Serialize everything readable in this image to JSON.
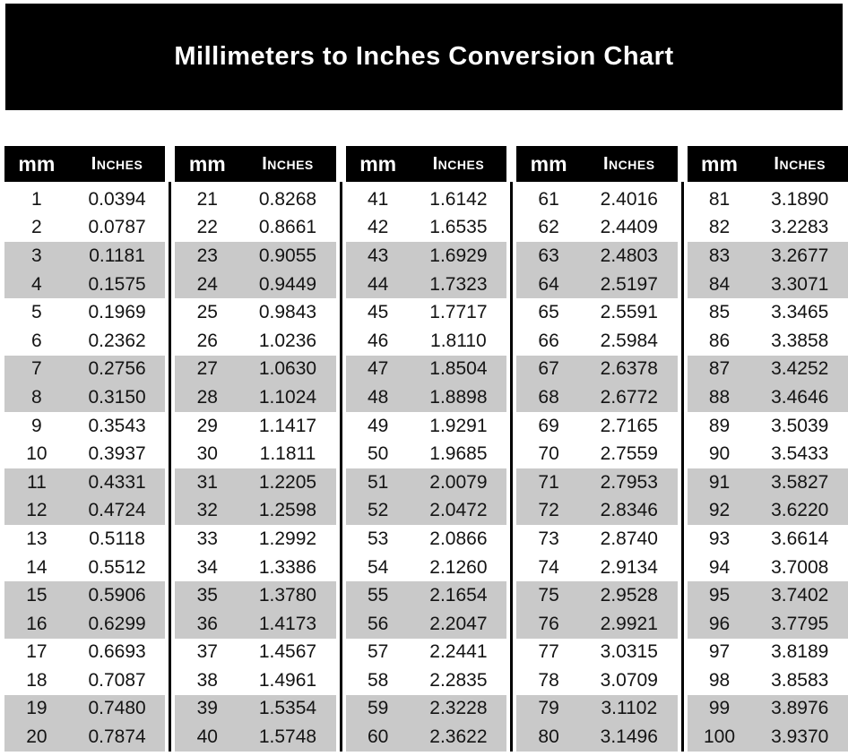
{
  "title": "Millimeters to Inches Conversion Chart",
  "table": {
    "col_headers": {
      "mm": "mm",
      "inches": "Inches"
    },
    "groups": [
      {
        "rows": [
          {
            "mm": "1",
            "inches": "0.0394"
          },
          {
            "mm": "2",
            "inches": "0.0787"
          },
          {
            "mm": "3",
            "inches": "0.1181"
          },
          {
            "mm": "4",
            "inches": "0.1575"
          },
          {
            "mm": "5",
            "inches": "0.1969"
          },
          {
            "mm": "6",
            "inches": "0.2362"
          },
          {
            "mm": "7",
            "inches": "0.2756"
          },
          {
            "mm": "8",
            "inches": "0.3150"
          },
          {
            "mm": "9",
            "inches": "0.3543"
          },
          {
            "mm": "10",
            "inches": "0.3937"
          },
          {
            "mm": "11",
            "inches": "0.4331"
          },
          {
            "mm": "12",
            "inches": "0.4724"
          },
          {
            "mm": "13",
            "inches": "0.5118"
          },
          {
            "mm": "14",
            "inches": "0.5512"
          },
          {
            "mm": "15",
            "inches": "0.5906"
          },
          {
            "mm": "16",
            "inches": "0.6299"
          },
          {
            "mm": "17",
            "inches": "0.6693"
          },
          {
            "mm": "18",
            "inches": "0.7087"
          },
          {
            "mm": "19",
            "inches": "0.7480"
          },
          {
            "mm": "20",
            "inches": "0.7874"
          }
        ]
      },
      {
        "rows": [
          {
            "mm": "21",
            "inches": "0.8268"
          },
          {
            "mm": "22",
            "inches": "0.8661"
          },
          {
            "mm": "23",
            "inches": "0.9055"
          },
          {
            "mm": "24",
            "inches": "0.9449"
          },
          {
            "mm": "25",
            "inches": "0.9843"
          },
          {
            "mm": "26",
            "inches": "1.0236"
          },
          {
            "mm": "27",
            "inches": "1.0630"
          },
          {
            "mm": "28",
            "inches": "1.1024"
          },
          {
            "mm": "29",
            "inches": "1.1417"
          },
          {
            "mm": "30",
            "inches": "1.1811"
          },
          {
            "mm": "31",
            "inches": "1.2205"
          },
          {
            "mm": "32",
            "inches": "1.2598"
          },
          {
            "mm": "33",
            "inches": "1.2992"
          },
          {
            "mm": "34",
            "inches": "1.3386"
          },
          {
            "mm": "35",
            "inches": "1.3780"
          },
          {
            "mm": "36",
            "inches": "1.4173"
          },
          {
            "mm": "37",
            "inches": "1.4567"
          },
          {
            "mm": "38",
            "inches": "1.4961"
          },
          {
            "mm": "39",
            "inches": "1.5354"
          },
          {
            "mm": "40",
            "inches": "1.5748"
          }
        ]
      },
      {
        "rows": [
          {
            "mm": "41",
            "inches": "1.6142"
          },
          {
            "mm": "42",
            "inches": "1.6535"
          },
          {
            "mm": "43",
            "inches": "1.6929"
          },
          {
            "mm": "44",
            "inches": "1.7323"
          },
          {
            "mm": "45",
            "inches": "1.7717"
          },
          {
            "mm": "46",
            "inches": "1.8110"
          },
          {
            "mm": "47",
            "inches": "1.8504"
          },
          {
            "mm": "48",
            "inches": "1.8898"
          },
          {
            "mm": "49",
            "inches": "1.9291"
          },
          {
            "mm": "50",
            "inches": "1.9685"
          },
          {
            "mm": "51",
            "inches": "2.0079"
          },
          {
            "mm": "52",
            "inches": "2.0472"
          },
          {
            "mm": "53",
            "inches": "2.0866"
          },
          {
            "mm": "54",
            "inches": "2.1260"
          },
          {
            "mm": "55",
            "inches": "2.1654"
          },
          {
            "mm": "56",
            "inches": "2.2047"
          },
          {
            "mm": "57",
            "inches": "2.2441"
          },
          {
            "mm": "58",
            "inches": "2.2835"
          },
          {
            "mm": "59",
            "inches": "2.3228"
          },
          {
            "mm": "60",
            "inches": "2.3622"
          }
        ]
      },
      {
        "rows": [
          {
            "mm": "61",
            "inches": "2.4016"
          },
          {
            "mm": "62",
            "inches": "2.4409"
          },
          {
            "mm": "63",
            "inches": "2.4803"
          },
          {
            "mm": "64",
            "inches": "2.5197"
          },
          {
            "mm": "65",
            "inches": "2.5591"
          },
          {
            "mm": "66",
            "inches": "2.5984"
          },
          {
            "mm": "67",
            "inches": "2.6378"
          },
          {
            "mm": "68",
            "inches": "2.6772"
          },
          {
            "mm": "69",
            "inches": "2.7165"
          },
          {
            "mm": "70",
            "inches": "2.7559"
          },
          {
            "mm": "71",
            "inches": "2.7953"
          },
          {
            "mm": "72",
            "inches": "2.8346"
          },
          {
            "mm": "73",
            "inches": "2.8740"
          },
          {
            "mm": "74",
            "inches": "2.9134"
          },
          {
            "mm": "75",
            "inches": "2.9528"
          },
          {
            "mm": "76",
            "inches": "2.9921"
          },
          {
            "mm": "77",
            "inches": "3.0315"
          },
          {
            "mm": "78",
            "inches": "3.0709"
          },
          {
            "mm": "79",
            "inches": "3.1102"
          },
          {
            "mm": "80",
            "inches": "3.1496"
          }
        ]
      },
      {
        "rows": [
          {
            "mm": "81",
            "inches": "3.1890"
          },
          {
            "mm": "82",
            "inches": "3.2283"
          },
          {
            "mm": "83",
            "inches": "3.2677"
          },
          {
            "mm": "84",
            "inches": "3.3071"
          },
          {
            "mm": "85",
            "inches": "3.3465"
          },
          {
            "mm": "86",
            "inches": "3.3858"
          },
          {
            "mm": "87",
            "inches": "3.4252"
          },
          {
            "mm": "88",
            "inches": "3.4646"
          },
          {
            "mm": "89",
            "inches": "3.5039"
          },
          {
            "mm": "90",
            "inches": "3.5433"
          },
          {
            "mm": "91",
            "inches": "3.5827"
          },
          {
            "mm": "92",
            "inches": "3.6220"
          },
          {
            "mm": "93",
            "inches": "3.6614"
          },
          {
            "mm": "94",
            "inches": "3.7008"
          },
          {
            "mm": "95",
            "inches": "3.7402"
          },
          {
            "mm": "96",
            "inches": "3.7795"
          },
          {
            "mm": "97",
            "inches": "3.8189"
          },
          {
            "mm": "98",
            "inches": "3.8583"
          },
          {
            "mm": "99",
            "inches": "3.8976"
          },
          {
            "mm": "100",
            "inches": "3.9370"
          }
        ]
      }
    ]
  },
  "colors": {
    "page_bg": "#ffffff",
    "banner_bg": "#000000",
    "banner_text": "#ffffff",
    "header_bg": "#000000",
    "header_text": "#ffffff",
    "stripe": "#c9c9c9",
    "cell_text": "#141414"
  }
}
